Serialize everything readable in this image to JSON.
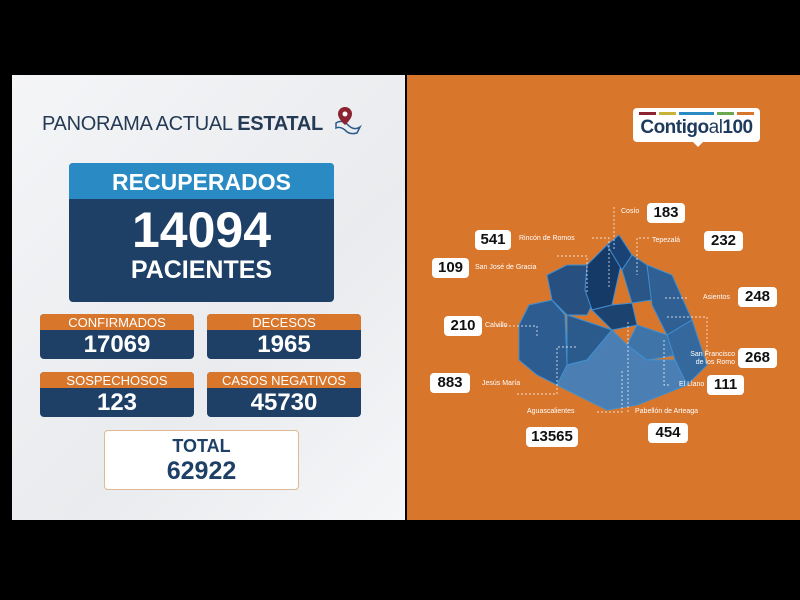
{
  "header": {
    "title_light": "PANORAMA ACTUAL ",
    "title_bold": "ESTATAL"
  },
  "recuperados": {
    "label": "RECUPERADOS",
    "value": "14094",
    "unit": "PACIENTES"
  },
  "stats": [
    {
      "label": "CONFIRMADOS",
      "value": "17069"
    },
    {
      "label": "DECESOS",
      "value": "1965"
    },
    {
      "label": "SOSPECHOSOS",
      "value": "123"
    },
    {
      "label": "CASOS NEGATIVOS",
      "value": "45730"
    }
  ],
  "total": {
    "label": "TOTAL",
    "value": "62922"
  },
  "logo": {
    "text_bold": "Contigo",
    "text_light": "al",
    "text_num": "100",
    "stripe_colors": [
      "#8b2332",
      "#c9b23a",
      "#2a8bc4",
      "#6aa84f",
      "#d8762c"
    ]
  },
  "colors": {
    "orange": "#d8762c",
    "navy": "#1e4066",
    "blue": "#2a8bc4"
  },
  "municipios": [
    {
      "name": "Cosío",
      "value": "183"
    },
    {
      "name": "Rincón de Romos",
      "value": "541"
    },
    {
      "name": "Tepezalá",
      "value": "232"
    },
    {
      "name": "San José de Gracia",
      "value": "109"
    },
    {
      "name": "Asientos",
      "value": "248"
    },
    {
      "name": "Calvillo",
      "value": "210"
    },
    {
      "name": "San Francisco de los Romo",
      "value": "268"
    },
    {
      "name": "El Llano",
      "value": "111"
    },
    {
      "name": "Jesús María",
      "value": "883"
    },
    {
      "name": "Aguascalientes",
      "value": "13565"
    },
    {
      "name": "Pabellón de Arteaga",
      "value": "454"
    }
  ]
}
